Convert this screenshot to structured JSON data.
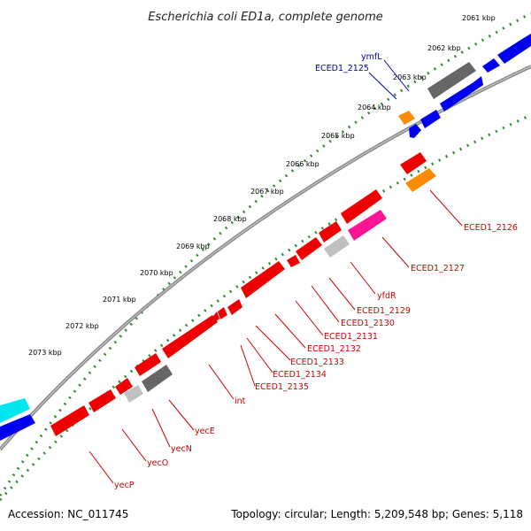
{
  "title": "Escherichia coli ED1a, complete genome",
  "footer": {
    "accession": "Accession: NC_011745",
    "summary": "Topology: circular; Length: 5,209,548 bp; Genes: 5,118"
  },
  "colors": {
    "background": "#ffffff",
    "backbone": "#8a8a8a",
    "tick_dots": "#2e8b2e",
    "forward_gene": "#0000ee",
    "reverse_gene": "#ee0000",
    "pseudo_gene": "#666666",
    "rna_gene": "#00e5ee",
    "orange_gene": "#ff8c00",
    "pink_gene": "#ff1493",
    "light_gray_gene": "#c0c0c0",
    "label_blue": "#0000aa",
    "label_red": "#cc0000"
  },
  "kbp_ticks": [
    "2061 kbp",
    "2062 kbp",
    "2063 kbp",
    "2064 kbp",
    "2065 kbp",
    "2066 kbp",
    "2067 kbp",
    "2068 kbp",
    "2069 kbp",
    "2070 kbp",
    "2071 kbp",
    "2072 kbp",
    "2073 kbp"
  ],
  "gene_labels": [
    {
      "text": "ymfL",
      "strand": "forward"
    },
    {
      "text": "ECED1_2125",
      "strand": "forward"
    },
    {
      "text": "ECED1_2126",
      "strand": "reverse"
    },
    {
      "text": "ECED1_2127",
      "strand": "reverse"
    },
    {
      "text": "yfdR",
      "strand": "reverse"
    },
    {
      "text": "ECED1_2129",
      "strand": "reverse"
    },
    {
      "text": "ECED1_2130",
      "strand": "reverse"
    },
    {
      "text": "ECED1_2131",
      "strand": "reverse"
    },
    {
      "text": "ECED1_2132",
      "strand": "reverse"
    },
    {
      "text": "ECED1_2133",
      "strand": "reverse"
    },
    {
      "text": "ECED1_2134",
      "strand": "reverse"
    },
    {
      "text": "ECED1_2135",
      "strand": "reverse"
    },
    {
      "text": "int",
      "strand": "reverse"
    },
    {
      "text": "yecE",
      "strand": "reverse"
    },
    {
      "text": "yecN",
      "strand": "reverse"
    },
    {
      "text": "yecO",
      "strand": "reverse"
    },
    {
      "text": "yecP",
      "strand": "reverse"
    }
  ]
}
